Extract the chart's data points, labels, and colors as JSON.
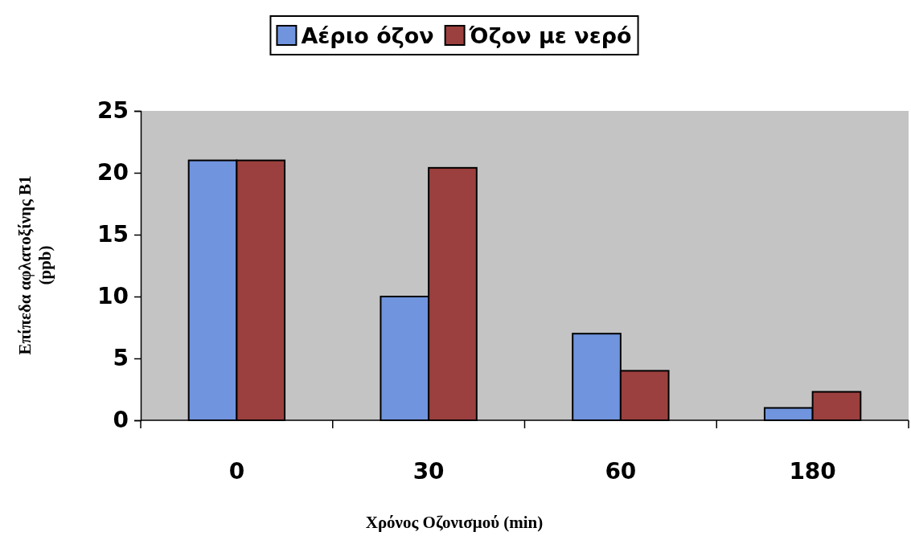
{
  "chart_data": {
    "type": "bar",
    "xlabel": "Χρόνος Οζονισμού (min)",
    "ylabel": "Επίπεδα αφλατοξίνης Β1 (ppb)",
    "categories": [
      "0",
      "30",
      "60",
      "180"
    ],
    "series": [
      {
        "name": "Αέριο όζον",
        "color": "#7094de",
        "values": [
          21,
          10,
          7,
          1
        ]
      },
      {
        "name": "Όζον με νερό",
        "color": "#9b403e",
        "values": [
          21,
          20.4,
          4,
          2.3
        ]
      }
    ],
    "ylim": [
      0,
      25
    ],
    "yticks": [
      0,
      5,
      10,
      15,
      20,
      25
    ],
    "grid": false,
    "legend": "top"
  }
}
